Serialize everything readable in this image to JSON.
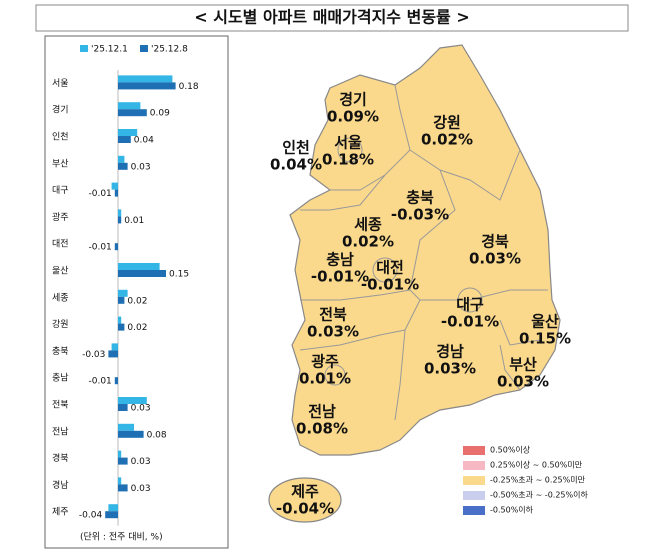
{
  "title": "< 시도별 아파트 매매가격지수 변동률 >",
  "chart_data": {
    "type": "bar",
    "orientation": "horizontal",
    "categories": [
      "서울",
      "경기",
      "인천",
      "부산",
      "대구",
      "광주",
      "대전",
      "울산",
      "세종",
      "강원",
      "충북",
      "충남",
      "전북",
      "전남",
      "경북",
      "경남",
      "제주"
    ],
    "series": [
      {
        "name": "'25.12.1",
        "color": "#33b5e5",
        "values": [
          0.17,
          0.07,
          0.06,
          0.02,
          -0.02,
          0.01,
          0,
          0.13,
          0.03,
          0.01,
          -0.02,
          0,
          0.09,
          0.05,
          0.01,
          0.01,
          -0.03
        ]
      },
      {
        "name": "'25.12.8",
        "color": "#1f6fb4",
        "values": [
          0.18,
          0.09,
          0.04,
          0.03,
          -0.01,
          0.01,
          -0.01,
          0.15,
          0.02,
          0.02,
          -0.03,
          -0.01,
          0.03,
          0.08,
          0.03,
          0.03,
          -0.04
        ]
      }
    ],
    "xlim": [
      -0.1,
      0.2
    ],
    "note": "(단위 : 전주 대비, %)"
  },
  "map": {
    "fill": "#fbd98c",
    "regions": [
      {
        "name": "경기",
        "value": "0.09%"
      },
      {
        "name": "서울",
        "value": "0.18%"
      },
      {
        "name": "인천",
        "value": "0.04%"
      },
      {
        "name": "강원",
        "value": "0.02%"
      },
      {
        "name": "충북",
        "value": "-0.03%"
      },
      {
        "name": "세종",
        "value": "0.02%"
      },
      {
        "name": "경북",
        "value": "0.03%"
      },
      {
        "name": "충남",
        "value": "-0.01%"
      },
      {
        "name": "대전",
        "value": "-0.01%"
      },
      {
        "name": "대구",
        "value": "-0.01%"
      },
      {
        "name": "울산",
        "value": "0.15%"
      },
      {
        "name": "전북",
        "value": "0.03%"
      },
      {
        "name": "경남",
        "value": "0.03%"
      },
      {
        "name": "부산",
        "value": "0.03%"
      },
      {
        "name": "광주",
        "value": "0.01%"
      },
      {
        "name": "전남",
        "value": "0.08%"
      },
      {
        "name": "제주",
        "value": "-0.04%"
      }
    ],
    "legend": [
      {
        "label": "0.50%이상",
        "color": "#e8706f"
      },
      {
        "label": "0.25%이상 ~ 0.50%미만",
        "color": "#f6b9c4"
      },
      {
        "label": "-0.25%초과 ~ 0.25%미만",
        "color": "#fbd98c"
      },
      {
        "label": "-0.50%초과 ~ -0.25%이하",
        "color": "#c9cdee"
      },
      {
        "label": "-0.50%이하",
        "color": "#4a6fc9"
      }
    ]
  }
}
